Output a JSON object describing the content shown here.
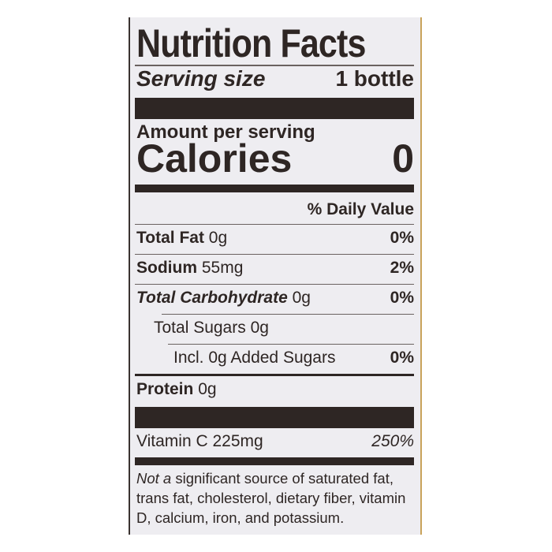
{
  "title": "Nutrition Facts",
  "serving": {
    "label": "Serving size",
    "value": "1 bottle"
  },
  "amount_per_serving": "Amount per serving",
  "calories": {
    "label": "Calories",
    "value": "0"
  },
  "daily_value_header": "% Daily Value",
  "nutrients": [
    {
      "name": "Total Fat",
      "amount": "0g",
      "dv": "0%"
    },
    {
      "name": "Sodium",
      "amount": "55mg",
      "dv": "2%"
    },
    {
      "name": "Total Carbohydrate",
      "amount": "0g",
      "dv": "0%"
    },
    {
      "name": "Total Sugars 0g"
    },
    {
      "name": "Incl. 0g Added Sugars",
      "dv": "0%"
    },
    {
      "name": "Protein",
      "amount": "0g"
    }
  ],
  "vitamins": [
    {
      "name": "Vitamin C 225mg",
      "dv": "250%"
    }
  ],
  "footnote": {
    "italic": "Not a",
    "text": " significant source of saturated fat, trans fat, cholesterol, dietary fiber, vitamin D, calcium, iron, and potassium."
  },
  "colors": {
    "ink": "#2e2624",
    "panel": "#eeedf1"
  }
}
